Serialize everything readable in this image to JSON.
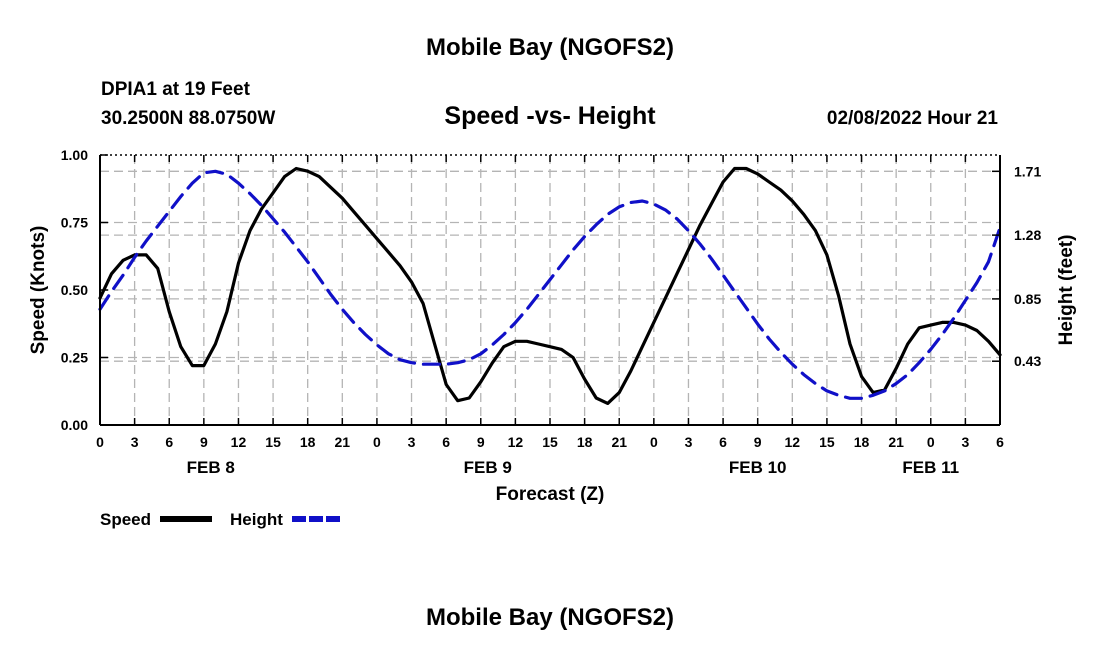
{
  "header": {
    "title": "Mobile Bay (NGOFS2)",
    "station": "DPIA1 at 19 Feet",
    "coords": "30.2500N  88.0750W",
    "subtitle": "Speed -vs- Height",
    "datetime": "02/08/2022 Hour 21"
  },
  "footer": {
    "title": "Mobile Bay (NGOFS2)"
  },
  "legend": {
    "speed_label": "Speed",
    "height_label": "Height"
  },
  "colors": {
    "speed": "#000000",
    "height": "#1010c8",
    "grid": "#b4b4b4"
  },
  "chart_data": {
    "type": "line",
    "title": "Speed -vs- Height",
    "xlabel": "Forecast (Z)",
    "ylabel": "Speed (Knots)",
    "y2label": "Height (feet)",
    "xlim": [
      0,
      78
    ],
    "ylim": [
      0,
      1.0
    ],
    "y2lim": [
      0.0,
      1.82
    ],
    "yticks": [
      0.0,
      0.25,
      0.5,
      0.75,
      1.0
    ],
    "ytick_labels": [
      "0.00",
      "0.25",
      "0.50",
      "0.75",
      "1.00"
    ],
    "y2ticks": [
      0.43,
      0.85,
      1.28,
      1.71
    ],
    "y2tick_labels": [
      "0.43",
      "0.85",
      "1.28",
      "1.71"
    ],
    "xtick_labels": [
      "0",
      "3",
      "6",
      "9",
      "12",
      "15",
      "18",
      "21",
      "0",
      "3",
      "6",
      "9",
      "12",
      "15",
      "18",
      "21",
      "0",
      "3",
      "6",
      "9",
      "12",
      "15",
      "18",
      "21",
      "0",
      "3",
      "6"
    ],
    "day_labels": [
      {
        "label": "FEB 8",
        "x": 9.6
      },
      {
        "label": "FEB 9",
        "x": 33.6
      },
      {
        "label": "FEB 10",
        "x": 57
      },
      {
        "label": "FEB 11",
        "x": 72
      }
    ],
    "series": [
      {
        "name": "Speed",
        "style": "solid",
        "x": [
          0,
          1,
          2,
          3,
          4,
          5,
          6,
          7,
          8,
          9,
          10,
          11,
          12,
          13,
          14,
          15,
          16,
          17,
          18,
          19,
          20,
          21,
          22,
          23,
          24,
          25,
          26,
          27,
          28,
          29,
          30,
          31,
          32,
          33,
          34,
          35,
          36,
          37,
          38,
          39,
          40,
          41,
          42,
          43,
          44,
          45,
          46,
          47,
          48,
          49,
          50,
          51,
          52,
          53,
          54,
          55,
          56,
          57,
          58,
          59,
          60,
          61,
          62,
          63,
          64,
          65,
          66,
          67,
          68,
          69,
          70,
          71,
          72,
          73,
          74,
          75,
          76,
          77,
          78
        ],
        "values": [
          0.47,
          0.56,
          0.61,
          0.63,
          0.63,
          0.58,
          0.42,
          0.29,
          0.22,
          0.22,
          0.3,
          0.42,
          0.6,
          0.72,
          0.8,
          0.86,
          0.92,
          0.95,
          0.94,
          0.92,
          0.88,
          0.84,
          0.79,
          0.74,
          0.69,
          0.64,
          0.59,
          0.53,
          0.45,
          0.3,
          0.15,
          0.09,
          0.1,
          0.16,
          0.23,
          0.29,
          0.31,
          0.31,
          0.3,
          0.29,
          0.28,
          0.25,
          0.17,
          0.1,
          0.08,
          0.12,
          0.2,
          0.29,
          0.38,
          0.47,
          0.56,
          0.65,
          0.74,
          0.82,
          0.9,
          0.95,
          0.95,
          0.93,
          0.9,
          0.87,
          0.83,
          0.78,
          0.72,
          0.63,
          0.48,
          0.3,
          0.18,
          0.12,
          0.13,
          0.21,
          0.3,
          0.36,
          0.37,
          0.38,
          0.38,
          0.37,
          0.35,
          0.31,
          0.26
        ]
      },
      {
        "name": "Height",
        "style": "dashed",
        "x": [
          0,
          1,
          2,
          3,
          4,
          5,
          6,
          7,
          8,
          9,
          10,
          11,
          12,
          13,
          14,
          15,
          16,
          17,
          18,
          19,
          20,
          21,
          22,
          23,
          24,
          25,
          26,
          27,
          28,
          29,
          30,
          31,
          32,
          33,
          34,
          35,
          36,
          37,
          38,
          39,
          40,
          41,
          42,
          43,
          44,
          45,
          46,
          47,
          48,
          49,
          50,
          51,
          52,
          53,
          54,
          55,
          56,
          57,
          58,
          59,
          60,
          61,
          62,
          63,
          64,
          65,
          66,
          67,
          68,
          69,
          70,
          71,
          72,
          73,
          74,
          75,
          76,
          77,
          78
        ],
        "values": [
          0.78,
          0.9,
          1.01,
          1.13,
          1.24,
          1.34,
          1.44,
          1.54,
          1.63,
          1.7,
          1.71,
          1.69,
          1.63,
          1.56,
          1.48,
          1.39,
          1.3,
          1.2,
          1.1,
          0.99,
          0.88,
          0.78,
          0.69,
          0.61,
          0.54,
          0.48,
          0.44,
          0.42,
          0.41,
          0.41,
          0.41,
          0.42,
          0.44,
          0.48,
          0.54,
          0.61,
          0.69,
          0.78,
          0.88,
          0.98,
          1.08,
          1.18,
          1.27,
          1.35,
          1.42,
          1.47,
          1.5,
          1.51,
          1.49,
          1.45,
          1.39,
          1.31,
          1.22,
          1.12,
          1.01,
          0.9,
          0.79,
          0.68,
          0.58,
          0.49,
          0.41,
          0.34,
          0.28,
          0.23,
          0.2,
          0.18,
          0.18,
          0.2,
          0.23,
          0.28,
          0.34,
          0.42,
          0.51,
          0.61,
          0.72,
          0.84,
          0.96,
          1.1,
          1.33
        ]
      }
    ]
  }
}
